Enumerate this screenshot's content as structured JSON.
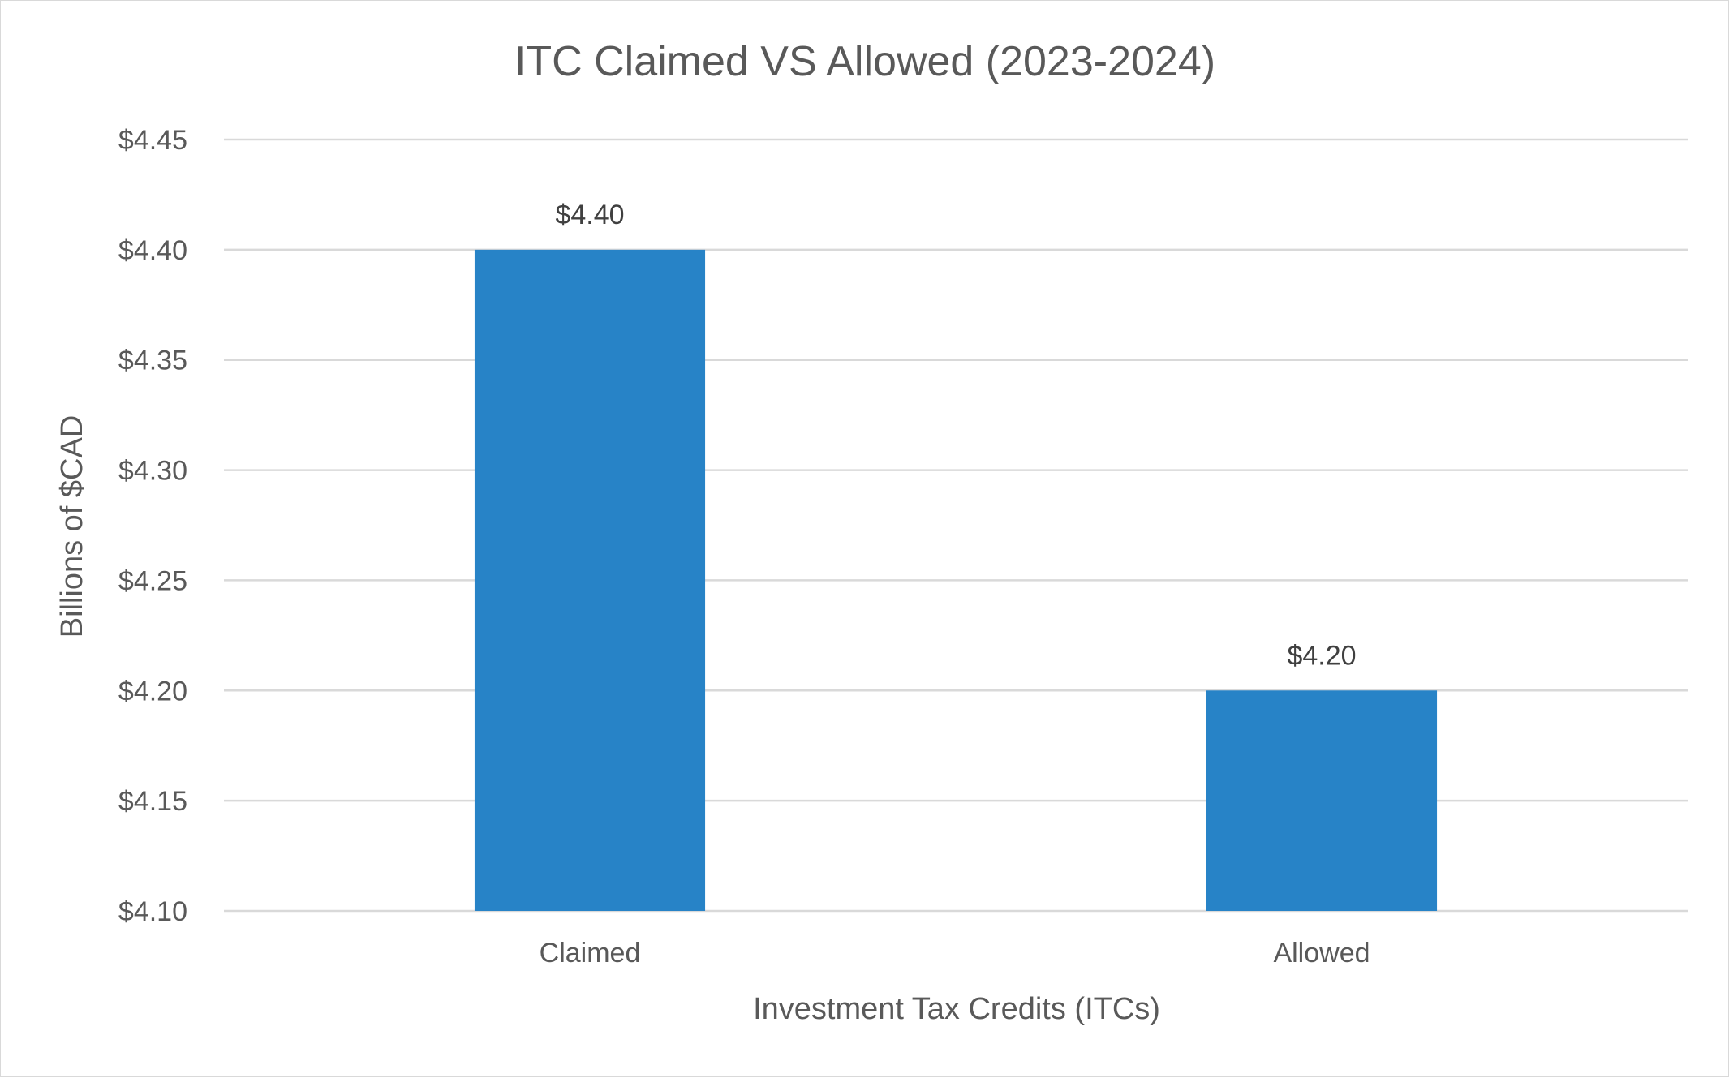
{
  "chart_data": {
    "type": "bar",
    "title": "ITC Claimed VS Allowed (2023-2024)",
    "xlabel": "Investment Tax Credits (ITCs)",
    "ylabel": "Billions of $CAD",
    "categories": [
      "Claimed",
      "Allowed"
    ],
    "values": [
      4.4,
      4.2
    ],
    "data_labels": [
      "$4.40",
      "$4.20"
    ],
    "ylim": [
      4.1,
      4.45
    ],
    "yticks": [
      4.1,
      4.15,
      4.2,
      4.25,
      4.3,
      4.35,
      4.4,
      4.45
    ],
    "ytick_labels": [
      "$4.10",
      "$4.15",
      "$4.20",
      "$4.25",
      "$4.30",
      "$4.35",
      "$4.40",
      "$4.45"
    ],
    "grid": true,
    "legend": "none",
    "colors": {
      "bar": "#2783C7",
      "grid": "#D9D9D9",
      "text": "#595959"
    }
  }
}
